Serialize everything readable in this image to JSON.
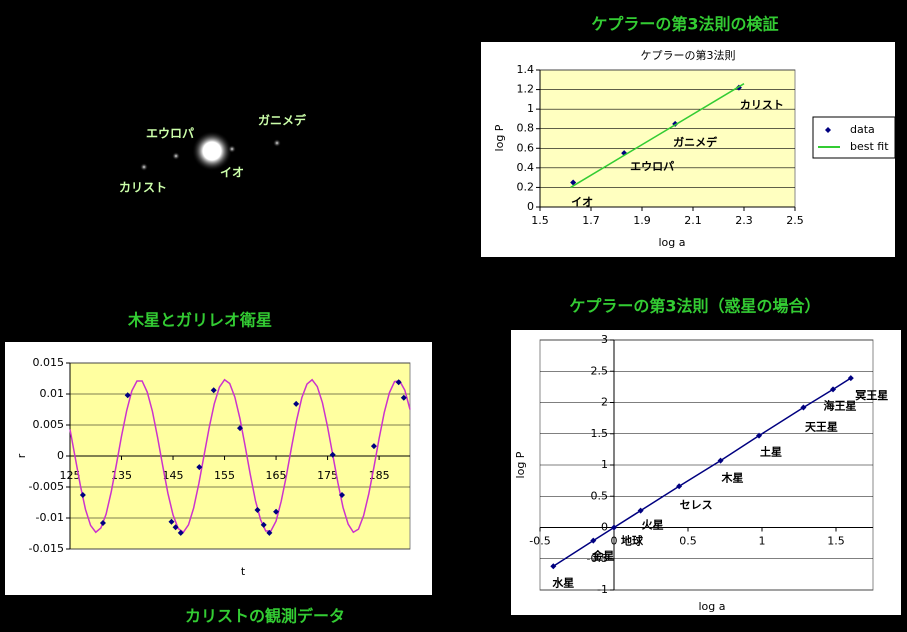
{
  "photo": {
    "labels": [
      "エウロパ",
      "ガニメデ",
      "カリスト",
      "イオ"
    ]
  },
  "chart_data": [
    {
      "type": "scatter",
      "heading": "ケプラーの第3法則の検証",
      "title": "ケプラーの第3法則",
      "x_label": "log a",
      "y_label": "log P",
      "xlim": [
        1.5,
        2.5
      ],
      "xticks": [
        1.5,
        1.7,
        1.9,
        2.1,
        2.3,
        2.5
      ],
      "ylim": [
        0,
        1.4
      ],
      "yticks": [
        0,
        0.2,
        0.4,
        0.6,
        0.8,
        1,
        1.2,
        1.4
      ],
      "grid": true,
      "plot_background": "#ffffc0",
      "legend": "right",
      "series": [
        {
          "name": "data",
          "color": "#000080",
          "markers": true,
          "line": false,
          "x": [
            1.63,
            1.83,
            2.03,
            2.28
          ],
          "values": [
            0.25,
            0.55,
            0.85,
            1.22
          ],
          "point_labels": [
            "イオ",
            "エウロパ",
            "ガニメデ",
            "カリスト"
          ],
          "label_color": "#3366cc"
        },
        {
          "name": "best fit",
          "color": "#33cc33",
          "markers": false,
          "line": true,
          "x": [
            1.62,
            2.3
          ],
          "values": [
            0.2,
            1.26
          ]
        }
      ]
    },
    {
      "type": "line",
      "heading": "木星とガリレオ衛星",
      "caption": "カリストの観測データ",
      "x_label": "t",
      "y_label": "r",
      "xlim": [
        125,
        191
      ],
      "xticks": [
        125,
        135,
        145,
        155,
        165,
        175,
        185
      ],
      "ylim": [
        -0.015,
        0.015
      ],
      "yticks": [
        -0.015,
        -0.01,
        -0.005,
        0,
        0.005,
        0.01,
        0.015
      ],
      "grid": true,
      "plot_background": "#ffffa0",
      "series": [
        {
          "color": "#cc33cc",
          "markers": false,
          "line": true,
          "x": [
            125,
            126,
            127,
            128,
            129,
            130,
            131,
            132,
            133,
            134,
            135,
            136,
            137,
            138,
            139,
            140,
            141,
            142,
            143,
            144,
            145,
            146,
            147,
            148,
            149,
            150,
            151,
            152,
            153,
            154,
            155,
            156,
            157,
            158,
            159,
            160,
            161,
            162,
            163,
            164,
            165,
            166,
            167,
            168,
            169,
            170,
            171,
            172,
            173,
            174,
            175,
            176,
            177,
            178,
            179,
            180,
            181,
            182,
            183,
            184,
            185,
            186,
            187,
            188,
            189,
            190,
            191
          ],
          "values": [
            0.0043,
            -0.0002,
            -0.0047,
            -0.0086,
            -0.0112,
            -0.0123,
            -0.0116,
            -0.0094,
            -0.0058,
            -0.0014,
            0.0032,
            0.0073,
            0.0105,
            0.0121,
            0.0121,
            0.0103,
            0.0072,
            0.003,
            -0.0016,
            -0.006,
            -0.0095,
            -0.0117,
            -0.0123,
            -0.0111,
            -0.0084,
            -0.0045,
            0,
            0.0045,
            0.0084,
            0.0111,
            0.0123,
            0.0117,
            0.0095,
            0.006,
            0.0016,
            -0.003,
            -0.0072,
            -0.0103,
            -0.0121,
            -0.0121,
            -0.0105,
            -0.0073,
            -0.0032,
            0.0014,
            0.0058,
            0.0094,
            0.0116,
            0.0123,
            0.0112,
            0.0086,
            0.0047,
            0.0002,
            -0.0043,
            -0.0083,
            -0.011,
            -0.0123,
            -0.0118,
            -0.0096,
            -0.0061,
            -0.0018,
            0.0028,
            0.007,
            0.0102,
            0.012,
            0.0121,
            0.0106,
            0.0075
          ]
        },
        {
          "color": "#000080",
          "markers": true,
          "line": false,
          "x": [
            127.5,
            131.4,
            136.2,
            144.7,
            145.5,
            146.5,
            150.1,
            152.9,
            158,
            161.4,
            162.6,
            163.7,
            165,
            168.9,
            176,
            177.8,
            184,
            188.8,
            189.8
          ],
          "values": [
            -0.0063,
            -0.0108,
            0.0098,
            -0.0106,
            -0.0115,
            -0.0124,
            -0.0018,
            0.0106,
            0.0045,
            -0.0087,
            -0.0111,
            -0.0124,
            -0.009,
            0.0084,
            0.0002,
            -0.0063,
            0.0016,
            0.0119,
            0.0094
          ]
        }
      ]
    },
    {
      "type": "scatter",
      "heading": "ケプラーの第3法則（惑星の場合）",
      "x_label": "log a",
      "y_label": "log P",
      "xlim": [
        -0.5,
        1.75
      ],
      "xticks": [
        -0.5,
        0,
        0.5,
        1,
        1.5
      ],
      "ylim": [
        -1,
        3
      ],
      "yticks": [
        -1,
        -0.5,
        0,
        0.5,
        1,
        1.5,
        2,
        2.5,
        3
      ],
      "grid": true,
      "plot_background": "#ffffff",
      "series": [
        {
          "color": "#000080",
          "markers": true,
          "line": true,
          "x": [
            -0.41,
            -0.14,
            0,
            0.18,
            0.44,
            0.72,
            0.98,
            1.28,
            1.48,
            1.6
          ],
          "values": [
            -0.62,
            -0.21,
            0,
            0.27,
            0.66,
            1.07,
            1.47,
            1.92,
            2.21,
            2.39
          ],
          "point_labels": [
            "水星",
            "金星",
            "地球",
            "火星",
            "セレス",
            "木星",
            "土星",
            "天王星",
            "海王星",
            "冥王星"
          ],
          "label_color": "#006600"
        }
      ]
    }
  ]
}
